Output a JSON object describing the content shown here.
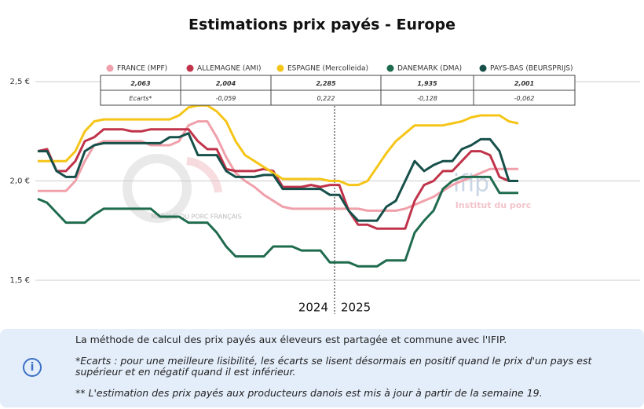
{
  "chart_data": {
    "type": "line",
    "title": "Estimations prix payés - Europe",
    "categories": [
      null,
      null,
      null,
      null,
      null,
      null,
      null,
      null,
      null,
      null,
      null,
      null,
      null,
      null,
      null,
      null,
      null,
      null,
      null,
      null,
      null,
      null,
      null,
      null,
      null,
      null,
      null,
      null,
      null,
      null,
      null,
      "2024",
      "2025",
      null,
      null,
      null,
      null,
      null,
      null,
      null,
      null,
      null,
      null,
      null,
      null,
      null,
      null,
      null,
      null,
      null,
      null,
      null
    ],
    "ylim": [
      1.5,
      2.5
    ],
    "yticks": [
      {
        "value": 1.5,
        "label": "1,5 €"
      },
      {
        "value": 2.0,
        "label": "2,0 €"
      },
      {
        "value": 2.5,
        "label": "2,5 €"
      }
    ],
    "grid": true,
    "series": [
      {
        "name": "FRANCE (MPF)",
        "color": "#f0a0aa",
        "values": [
          1.95,
          1.95,
          1.95,
          1.95,
          2.0,
          2.1,
          2.18,
          2.2,
          2.2,
          2.2,
          2.2,
          2.2,
          2.18,
          2.18,
          2.18,
          2.2,
          2.28,
          2.3,
          2.3,
          2.22,
          2.12,
          2.04,
          2.0,
          1.97,
          1.93,
          1.9,
          1.87,
          1.86,
          1.86,
          1.86,
          1.86,
          1.86,
          1.86,
          1.86,
          1.86,
          1.85,
          1.85,
          1.85,
          1.85,
          1.86,
          1.88,
          1.9,
          1.92,
          1.95,
          1.98,
          2.0,
          2.02,
          2.04,
          2.06,
          2.06,
          2.06,
          2.06
        ]
      },
      {
        "name": "ALLEMAGNE (AMI)",
        "color": "#c0334a",
        "values": [
          2.15,
          2.16,
          2.05,
          2.05,
          2.1,
          2.2,
          2.22,
          2.26,
          2.26,
          2.26,
          2.25,
          2.25,
          2.26,
          2.26,
          2.26,
          2.26,
          2.26,
          2.2,
          2.16,
          2.16,
          2.06,
          2.05,
          2.05,
          2.05,
          2.06,
          2.05,
          1.97,
          1.97,
          1.97,
          1.98,
          1.97,
          1.98,
          1.98,
          1.85,
          1.78,
          1.78,
          1.76,
          1.76,
          1.76,
          1.76,
          1.9,
          1.98,
          2.0,
          2.05,
          2.05,
          2.1,
          2.15,
          2.15,
          2.13,
          2.02,
          2.0,
          2.0
        ]
      },
      {
        "name": "ESPAGNE (Mercolleida)",
        "color": "#f5c518",
        "values": [
          2.1,
          2.1,
          2.1,
          2.1,
          2.15,
          2.25,
          2.3,
          2.31,
          2.31,
          2.31,
          2.31,
          2.31,
          2.31,
          2.31,
          2.31,
          2.33,
          2.37,
          2.38,
          2.38,
          2.35,
          2.3,
          2.2,
          2.13,
          2.1,
          2.07,
          2.04,
          2.01,
          2.01,
          2.01,
          2.01,
          2.01,
          2.0,
          2.0,
          1.98,
          1.98,
          2.0,
          2.07,
          2.14,
          2.2,
          2.24,
          2.28,
          2.28,
          2.28,
          2.28,
          2.29,
          2.3,
          2.32,
          2.33,
          2.33,
          2.33,
          2.3,
          2.29
        ]
      },
      {
        "name": "DANEMARK (DMA)",
        "color": "#1f6b4e",
        "values": [
          1.91,
          1.89,
          1.84,
          1.79,
          1.79,
          1.79,
          1.83,
          1.86,
          1.86,
          1.86,
          1.86,
          1.86,
          1.86,
          1.82,
          1.82,
          1.82,
          1.79,
          1.79,
          1.79,
          1.74,
          1.67,
          1.62,
          1.62,
          1.62,
          1.62,
          1.67,
          1.67,
          1.67,
          1.65,
          1.65,
          1.65,
          1.59,
          1.59,
          1.59,
          1.57,
          1.57,
          1.57,
          1.6,
          1.6,
          1.6,
          1.74,
          1.8,
          1.85,
          1.96,
          2.0,
          2.02,
          2.02,
          2.02,
          2.02,
          1.94,
          1.94,
          1.94
        ]
      },
      {
        "name": "PAYS-BAS (BEURSPRIJS)",
        "color": "#17504a",
        "values": [
          2.15,
          2.15,
          2.05,
          2.02,
          2.02,
          2.15,
          2.18,
          2.19,
          2.19,
          2.19,
          2.19,
          2.19,
          2.19,
          2.19,
          2.22,
          2.22,
          2.24,
          2.13,
          2.13,
          2.13,
          2.05,
          2.02,
          2.02,
          2.02,
          2.03,
          2.03,
          1.96,
          1.96,
          1.96,
          1.96,
          1.96,
          1.93,
          1.93,
          1.85,
          1.8,
          1.8,
          1.8,
          1.87,
          1.9,
          2.0,
          2.1,
          2.05,
          2.08,
          2.1,
          2.1,
          2.16,
          2.18,
          2.21,
          2.21,
          2.15,
          2.0,
          2.0
        ]
      }
    ],
    "table": {
      "rows": [
        [
          "2,063",
          "2,004",
          "2,285",
          "1,935",
          "2,001"
        ],
        [
          "Ecarts*",
          "-0,059",
          "0,222",
          "-0,128",
          "-0,062"
        ]
      ]
    },
    "watermarks": [
      "MARCHÉ DU PORC FRANÇAIS",
      "ifip",
      "Institut du porc"
    ]
  },
  "info": {
    "lines": [
      "La méthode de calcul des prix payés aux éleveurs est partagée et commune avec l'IFIP.",
      "*Ecarts : pour une meilleure lisibilité, les écarts se lisent désormais en positif quand le prix d'un pays est supérieur et en négatif quand il est inférieur.",
      "** L'estimation des prix payés aux producteurs danois est mis à jour à partir de la semaine 19."
    ]
  }
}
